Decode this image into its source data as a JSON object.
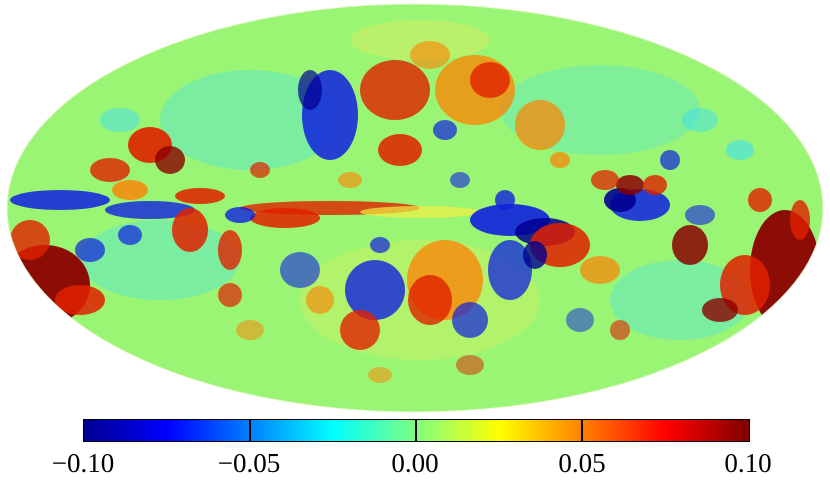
{
  "map": {
    "projection": "mollweide",
    "colormap": "jet",
    "min": -0.1,
    "max": 0.1,
    "background": "#ffffff",
    "colormap_stops": [
      "#00008f",
      "#0000ff",
      "#00ffff",
      "#ffff00",
      "#ff0000",
      "#800000"
    ]
  },
  "colorbar": {
    "ticks": [
      "−0.10",
      "−0.05",
      "0.00",
      "0.05",
      "0.10"
    ]
  }
}
